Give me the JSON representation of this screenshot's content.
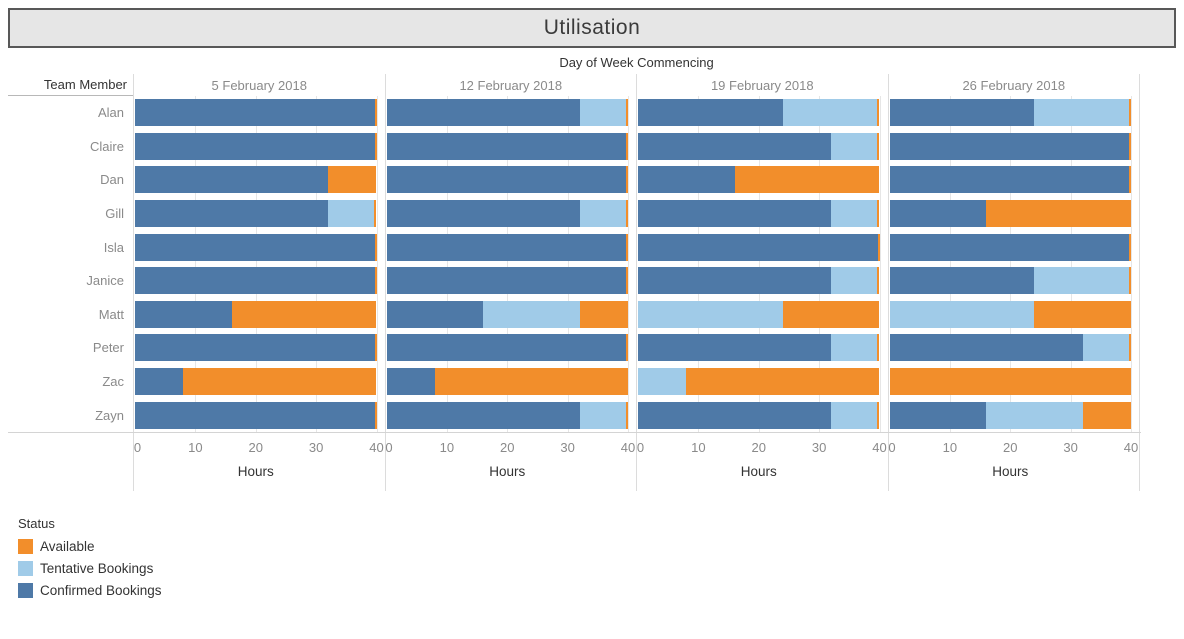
{
  "title": "Utilisation",
  "colors": {
    "available": "#f28e2b",
    "tentative": "#a0cbe8",
    "confirmed": "#4e79a7",
    "title_bg": "#e6e6e6",
    "title_border": "#585858"
  },
  "legend": {
    "title": "Status",
    "items": [
      {
        "label": "Available",
        "color_key": "available"
      },
      {
        "label": "Tentative Bookings",
        "color_key": "tentative"
      },
      {
        "label": "Confirmed Bookings",
        "color_key": "confirmed"
      }
    ]
  },
  "chart_data": {
    "type": "bar",
    "orientation": "horizontal",
    "stacked": true,
    "small_multiples": true,
    "title": "Utilisation",
    "column_axis_title": "Day of Week Commencing",
    "row_axis_title": "Team Member",
    "xlabel": "Hours",
    "xlim": [
      0,
      40
    ],
    "x_ticks": [
      0,
      10,
      20,
      30,
      40
    ],
    "grid": true,
    "legend_position": "bottom-left",
    "stack_order": [
      "confirmed",
      "tentative",
      "available"
    ],
    "members": [
      "Alan",
      "Claire",
      "Dan",
      "Gill",
      "Isla",
      "Janice",
      "Matt",
      "Peter",
      "Zac",
      "Zayn"
    ],
    "weeks": [
      {
        "label": "5 February 2018",
        "bars": [
          {
            "member": "Alan",
            "confirmed": 40,
            "tentative": 0,
            "available": 0
          },
          {
            "member": "Claire",
            "confirmed": 40,
            "tentative": 0,
            "available": 0
          },
          {
            "member": "Dan",
            "confirmed": 32,
            "tentative": 0,
            "available": 8
          },
          {
            "member": "Gill",
            "confirmed": 32,
            "tentative": 8,
            "available": 0
          },
          {
            "member": "Isla",
            "confirmed": 40,
            "tentative": 0,
            "available": 0
          },
          {
            "member": "Janice",
            "confirmed": 40,
            "tentative": 0,
            "available": 0
          },
          {
            "member": "Matt",
            "confirmed": 16,
            "tentative": 0,
            "available": 24
          },
          {
            "member": "Peter",
            "confirmed": 40,
            "tentative": 0,
            "available": 0
          },
          {
            "member": "Zac",
            "confirmed": 8,
            "tentative": 0,
            "available": 32
          },
          {
            "member": "Zayn",
            "confirmed": 40,
            "tentative": 0,
            "available": 0
          }
        ]
      },
      {
        "label": "12 February 2018",
        "bars": [
          {
            "member": "Alan",
            "confirmed": 32,
            "tentative": 8,
            "available": 0
          },
          {
            "member": "Claire",
            "confirmed": 40,
            "tentative": 0,
            "available": 0
          },
          {
            "member": "Dan",
            "confirmed": 40,
            "tentative": 0,
            "available": 0
          },
          {
            "member": "Gill",
            "confirmed": 32,
            "tentative": 8,
            "available": 0
          },
          {
            "member": "Isla",
            "confirmed": 40,
            "tentative": 0,
            "available": 0
          },
          {
            "member": "Janice",
            "confirmed": 40,
            "tentative": 0,
            "available": 0
          },
          {
            "member": "Matt",
            "confirmed": 16,
            "tentative": 16,
            "available": 8
          },
          {
            "member": "Peter",
            "confirmed": 40,
            "tentative": 0,
            "available": 0
          },
          {
            "member": "Zac",
            "confirmed": 8,
            "tentative": 0,
            "available": 32
          },
          {
            "member": "Zayn",
            "confirmed": 32,
            "tentative": 8,
            "available": 0
          }
        ]
      },
      {
        "label": "19 February 2018",
        "bars": [
          {
            "member": "Alan",
            "confirmed": 24,
            "tentative": 16,
            "available": 0
          },
          {
            "member": "Claire",
            "confirmed": 32,
            "tentative": 8,
            "available": 0
          },
          {
            "member": "Dan",
            "confirmed": 16,
            "tentative": 0,
            "available": 24
          },
          {
            "member": "Gill",
            "confirmed": 32,
            "tentative": 8,
            "available": 0
          },
          {
            "member": "Isla",
            "confirmed": 40,
            "tentative": 0,
            "available": 0
          },
          {
            "member": "Janice",
            "confirmed": 32,
            "tentative": 8,
            "available": 0
          },
          {
            "member": "Matt",
            "confirmed": 0,
            "tentative": 24,
            "available": 16
          },
          {
            "member": "Peter",
            "confirmed": 32,
            "tentative": 8,
            "available": 0
          },
          {
            "member": "Zac",
            "confirmed": 0,
            "tentative": 8,
            "available": 32
          },
          {
            "member": "Zayn",
            "confirmed": 32,
            "tentative": 8,
            "available": 0
          }
        ]
      },
      {
        "label": "26 February 2018",
        "bars": [
          {
            "member": "Alan",
            "confirmed": 24,
            "tentative": 16,
            "available": 0
          },
          {
            "member": "Claire",
            "confirmed": 40,
            "tentative": 0,
            "available": 0
          },
          {
            "member": "Dan",
            "confirmed": 40,
            "tentative": 0,
            "available": 0
          },
          {
            "member": "Gill",
            "confirmed": 16,
            "tentative": 0,
            "available": 24
          },
          {
            "member": "Isla",
            "confirmed": 40,
            "tentative": 0,
            "available": 0
          },
          {
            "member": "Janice",
            "confirmed": 24,
            "tentative": 16,
            "available": 0
          },
          {
            "member": "Matt",
            "confirmed": 0,
            "tentative": 24,
            "available": 16
          },
          {
            "member": "Peter",
            "confirmed": 32,
            "tentative": 8,
            "available": 0
          },
          {
            "member": "Zac",
            "confirmed": 0,
            "tentative": 0,
            "available": 40
          },
          {
            "member": "Zayn",
            "confirmed": 16,
            "tentative": 16,
            "available": 8
          }
        ]
      }
    ]
  }
}
